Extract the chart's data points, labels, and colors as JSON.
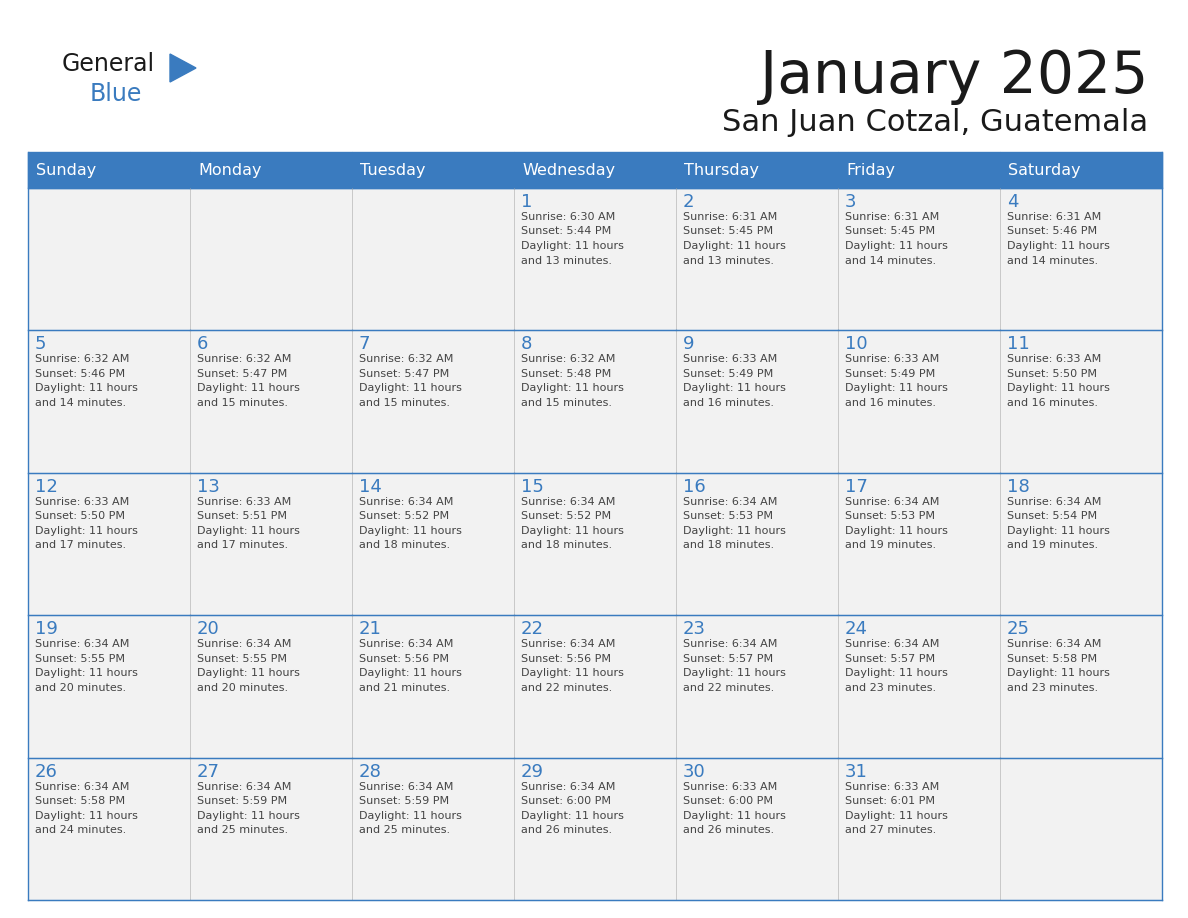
{
  "title": "January 2025",
  "subtitle": "San Juan Cotzal, Guatemala",
  "days_of_week": [
    "Sunday",
    "Monday",
    "Tuesday",
    "Wednesday",
    "Thursday",
    "Friday",
    "Saturday"
  ],
  "header_bg": "#3a7bbf",
  "header_text": "#ffffff",
  "cell_bg": "#f2f2f2",
  "border_color": "#3a7bbf",
  "day_num_color": "#3a7bbf",
  "text_color": "#444444",
  "calendar": [
    [
      {
        "day": "",
        "sunrise": "",
        "sunset": "",
        "daylight_h": "",
        "daylight_m": ""
      },
      {
        "day": "",
        "sunrise": "",
        "sunset": "",
        "daylight_h": "",
        "daylight_m": ""
      },
      {
        "day": "",
        "sunrise": "",
        "sunset": "",
        "daylight_h": "",
        "daylight_m": ""
      },
      {
        "day": "1",
        "sunrise": "6:30 AM",
        "sunset": "5:44 PM",
        "daylight_h": "11 hours",
        "daylight_m": "and 13 minutes."
      },
      {
        "day": "2",
        "sunrise": "6:31 AM",
        "sunset": "5:45 PM",
        "daylight_h": "11 hours",
        "daylight_m": "and 13 minutes."
      },
      {
        "day": "3",
        "sunrise": "6:31 AM",
        "sunset": "5:45 PM",
        "daylight_h": "11 hours",
        "daylight_m": "and 14 minutes."
      },
      {
        "day": "4",
        "sunrise": "6:31 AM",
        "sunset": "5:46 PM",
        "daylight_h": "11 hours",
        "daylight_m": "and 14 minutes."
      }
    ],
    [
      {
        "day": "5",
        "sunrise": "6:32 AM",
        "sunset": "5:46 PM",
        "daylight_h": "11 hours",
        "daylight_m": "and 14 minutes."
      },
      {
        "day": "6",
        "sunrise": "6:32 AM",
        "sunset": "5:47 PM",
        "daylight_h": "11 hours",
        "daylight_m": "and 15 minutes."
      },
      {
        "day": "7",
        "sunrise": "6:32 AM",
        "sunset": "5:47 PM",
        "daylight_h": "11 hours",
        "daylight_m": "and 15 minutes."
      },
      {
        "day": "8",
        "sunrise": "6:32 AM",
        "sunset": "5:48 PM",
        "daylight_h": "11 hours",
        "daylight_m": "and 15 minutes."
      },
      {
        "day": "9",
        "sunrise": "6:33 AM",
        "sunset": "5:49 PM",
        "daylight_h": "11 hours",
        "daylight_m": "and 16 minutes."
      },
      {
        "day": "10",
        "sunrise": "6:33 AM",
        "sunset": "5:49 PM",
        "daylight_h": "11 hours",
        "daylight_m": "and 16 minutes."
      },
      {
        "day": "11",
        "sunrise": "6:33 AM",
        "sunset": "5:50 PM",
        "daylight_h": "11 hours",
        "daylight_m": "and 16 minutes."
      }
    ],
    [
      {
        "day": "12",
        "sunrise": "6:33 AM",
        "sunset": "5:50 PM",
        "daylight_h": "11 hours",
        "daylight_m": "and 17 minutes."
      },
      {
        "day": "13",
        "sunrise": "6:33 AM",
        "sunset": "5:51 PM",
        "daylight_h": "11 hours",
        "daylight_m": "and 17 minutes."
      },
      {
        "day": "14",
        "sunrise": "6:34 AM",
        "sunset": "5:52 PM",
        "daylight_h": "11 hours",
        "daylight_m": "and 18 minutes."
      },
      {
        "day": "15",
        "sunrise": "6:34 AM",
        "sunset": "5:52 PM",
        "daylight_h": "11 hours",
        "daylight_m": "and 18 minutes."
      },
      {
        "day": "16",
        "sunrise": "6:34 AM",
        "sunset": "5:53 PM",
        "daylight_h": "11 hours",
        "daylight_m": "and 18 minutes."
      },
      {
        "day": "17",
        "sunrise": "6:34 AM",
        "sunset": "5:53 PM",
        "daylight_h": "11 hours",
        "daylight_m": "and 19 minutes."
      },
      {
        "day": "18",
        "sunrise": "6:34 AM",
        "sunset": "5:54 PM",
        "daylight_h": "11 hours",
        "daylight_m": "and 19 minutes."
      }
    ],
    [
      {
        "day": "19",
        "sunrise": "6:34 AM",
        "sunset": "5:55 PM",
        "daylight_h": "11 hours",
        "daylight_m": "and 20 minutes."
      },
      {
        "day": "20",
        "sunrise": "6:34 AM",
        "sunset": "5:55 PM",
        "daylight_h": "11 hours",
        "daylight_m": "and 20 minutes."
      },
      {
        "day": "21",
        "sunrise": "6:34 AM",
        "sunset": "5:56 PM",
        "daylight_h": "11 hours",
        "daylight_m": "and 21 minutes."
      },
      {
        "day": "22",
        "sunrise": "6:34 AM",
        "sunset": "5:56 PM",
        "daylight_h": "11 hours",
        "daylight_m": "and 22 minutes."
      },
      {
        "day": "23",
        "sunrise": "6:34 AM",
        "sunset": "5:57 PM",
        "daylight_h": "11 hours",
        "daylight_m": "and 22 minutes."
      },
      {
        "day": "24",
        "sunrise": "6:34 AM",
        "sunset": "5:57 PM",
        "daylight_h": "11 hours",
        "daylight_m": "and 23 minutes."
      },
      {
        "day": "25",
        "sunrise": "6:34 AM",
        "sunset": "5:58 PM",
        "daylight_h": "11 hours",
        "daylight_m": "and 23 minutes."
      }
    ],
    [
      {
        "day": "26",
        "sunrise": "6:34 AM",
        "sunset": "5:58 PM",
        "daylight_h": "11 hours",
        "daylight_m": "and 24 minutes."
      },
      {
        "day": "27",
        "sunrise": "6:34 AM",
        "sunset": "5:59 PM",
        "daylight_h": "11 hours",
        "daylight_m": "and 25 minutes."
      },
      {
        "day": "28",
        "sunrise": "6:34 AM",
        "sunset": "5:59 PM",
        "daylight_h": "11 hours",
        "daylight_m": "and 25 minutes."
      },
      {
        "day": "29",
        "sunrise": "6:34 AM",
        "sunset": "6:00 PM",
        "daylight_h": "11 hours",
        "daylight_m": "and 26 minutes."
      },
      {
        "day": "30",
        "sunrise": "6:33 AM",
        "sunset": "6:00 PM",
        "daylight_h": "11 hours",
        "daylight_m": "and 26 minutes."
      },
      {
        "day": "31",
        "sunrise": "6:33 AM",
        "sunset": "6:01 PM",
        "daylight_h": "11 hours",
        "daylight_m": "and 27 minutes."
      },
      {
        "day": "",
        "sunrise": "",
        "sunset": "",
        "daylight_h": "",
        "daylight_m": ""
      }
    ]
  ]
}
